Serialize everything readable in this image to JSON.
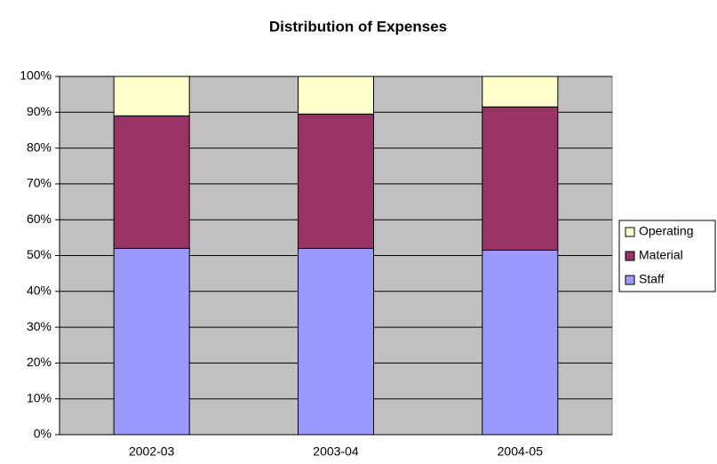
{
  "chart_data": {
    "type": "stacked_bar",
    "title": "Distribution of Expenses",
    "categories": [
      "2002-03",
      "2003-04",
      "2004-05"
    ],
    "series": [
      {
        "name": "Staff",
        "color": "#9999ff",
        "values": [
          52,
          52,
          51.5
        ]
      },
      {
        "name": "Material",
        "color": "#993366",
        "values": [
          37,
          37.5,
          40
        ]
      },
      {
        "name": "Operating",
        "color": "#ffffcc",
        "values": [
          11,
          10.5,
          8.5
        ]
      }
    ],
    "ylim": [
      0,
      100
    ],
    "yticks": [
      {
        "value": 0,
        "label": "0%"
      },
      {
        "value": 10,
        "label": "10%"
      },
      {
        "value": 20,
        "label": "20%"
      },
      {
        "value": 30,
        "label": "30%"
      },
      {
        "value": 40,
        "label": "40%"
      },
      {
        "value": 50,
        "label": "50%"
      },
      {
        "value": 60,
        "label": "60%"
      },
      {
        "value": 70,
        "label": "70%"
      },
      {
        "value": 80,
        "label": "80%"
      },
      {
        "value": 90,
        "label": "90%"
      },
      {
        "value": 100,
        "label": "100%"
      }
    ],
    "grid": true,
    "legend": "right"
  }
}
